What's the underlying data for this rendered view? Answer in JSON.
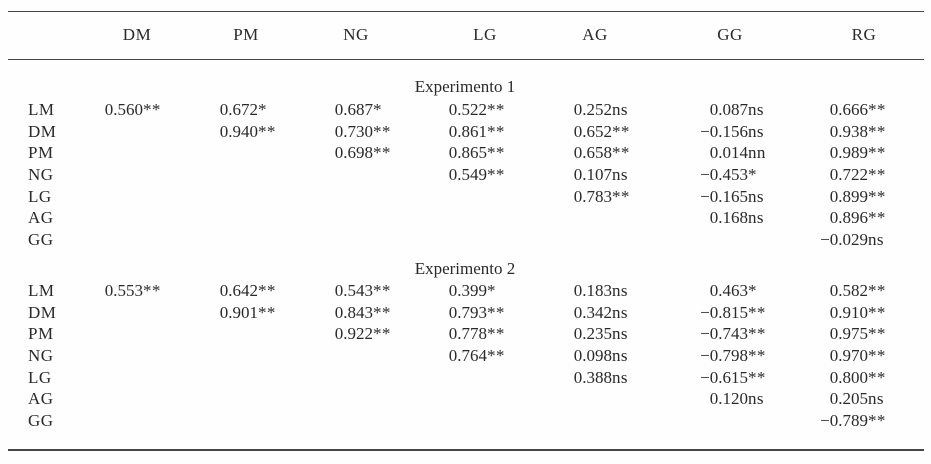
{
  "table": {
    "columns": [
      "DM",
      "PM",
      "NG",
      "LG",
      "AG",
      "GG",
      "RG"
    ],
    "sections": [
      {
        "title": "Experimento 1",
        "rows": [
          {
            "label": "LM",
            "values": [
              "0.560**",
              "0.672*",
              "0.687*",
              "0.522**",
              "0.252ns",
              "0.087ns",
              "0.666**"
            ]
          },
          {
            "label": "DM",
            "values": [
              "",
              "0.940**",
              "0.730**",
              "0.861**",
              "0.652**",
              "−0.156ns",
              "0.938**"
            ]
          },
          {
            "label": "PM",
            "values": [
              "",
              "",
              "0.698**",
              "0.865**",
              "0.658**",
              "0.014nn",
              "0.989**"
            ]
          },
          {
            "label": "NG",
            "values": [
              "",
              "",
              "",
              "0.549**",
              "0.107ns",
              "−0.453*",
              "0.722**"
            ]
          },
          {
            "label": "LG",
            "values": [
              "",
              "",
              "",
              "",
              "0.783**",
              "−0.165ns",
              "0.899**"
            ]
          },
          {
            "label": "AG",
            "values": [
              "",
              "",
              "",
              "",
              "",
              "0.168ns",
              "0.896**"
            ]
          },
          {
            "label": "GG",
            "values": [
              "",
              "",
              "",
              "",
              "",
              "",
              "−0.029ns"
            ]
          }
        ]
      },
      {
        "title": "Experimento 2",
        "rows": [
          {
            "label": "LM",
            "values": [
              "0.553**",
              "0.642**",
              "0.543**",
              "0.399*",
              "0.183ns",
              "0.463*",
              "0.582**"
            ]
          },
          {
            "label": "DM",
            "values": [
              "",
              "0.901**",
              "0.843**",
              "0.793**",
              "0.342ns",
              "−0.815**",
              "0.910**"
            ]
          },
          {
            "label": "PM",
            "values": [
              "",
              "",
              "0.922**",
              "0.778**",
              "0.235ns",
              "−0.743**",
              "0.975**"
            ]
          },
          {
            "label": "NG",
            "values": [
              "",
              "",
              "",
              "0.764**",
              "0.098ns",
              "−0.798**",
              "0.970**"
            ]
          },
          {
            "label": "LG",
            "values": [
              "",
              "",
              "",
              "",
              "0.388ns",
              "−0.615**",
              "0.800**"
            ]
          },
          {
            "label": "AG",
            "values": [
              "",
              "",
              "",
              "",
              "",
              "0.120ns",
              "0.205ns"
            ]
          },
          {
            "label": "GG",
            "values": [
              "",
              "",
              "",
              "",
              "",
              "",
              "−0.789**"
            ]
          }
        ]
      }
    ]
  }
}
